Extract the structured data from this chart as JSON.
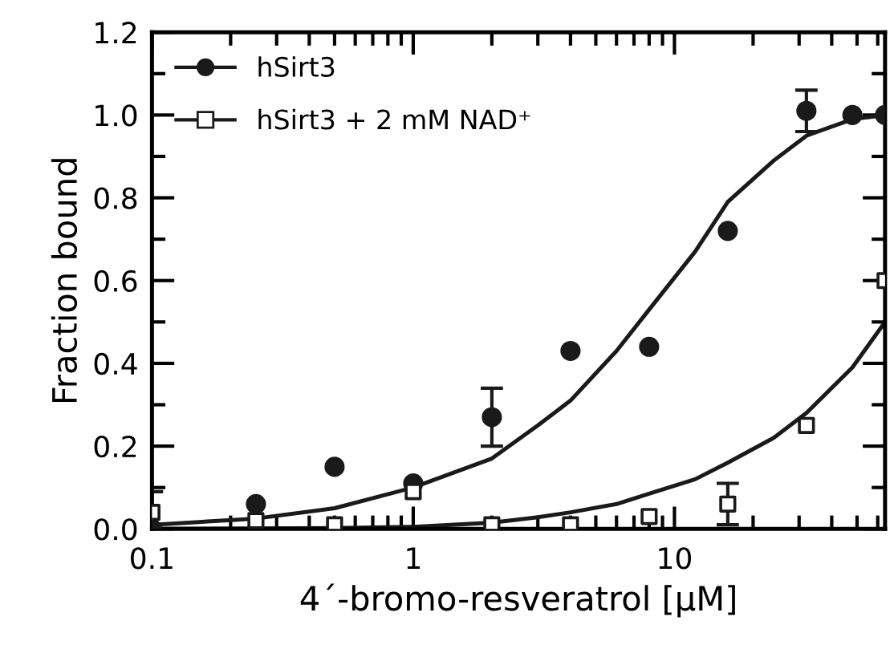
{
  "chart_data": {
    "type": "scatter",
    "xlabel": "4´-bromo-resveratrol [µM]",
    "ylabel": "Fraction bound",
    "log": "x",
    "xlim": [
      0.1,
      64
    ],
    "xticks": [
      0.1,
      1,
      10
    ],
    "ylim": [
      0,
      1.2
    ],
    "yticks": [
      {
        "value": 0,
        "label": "0.0"
      },
      {
        "value": 0.2,
        "label": "0.2"
      },
      {
        "value": 0.4,
        "label": "0.4"
      },
      {
        "value": 0.6,
        "label": "0.6"
      },
      {
        "value": 0.8,
        "label": "0.8"
      },
      {
        "value": 1.0,
        "label": "1.0"
      },
      {
        "value": 1.2,
        "label": "1.2"
      }
    ],
    "legend": "top left",
    "grid": false,
    "series": [
      {
        "name": "hSirt3",
        "marker": "circle",
        "color": "#1a1a1a",
        "x": [
          0.1,
          0.25,
          0.5,
          1,
          2,
          4,
          8,
          16,
          32,
          48,
          64
        ],
        "values": [
          0.0,
          0.06,
          0.15,
          0.11,
          0.27,
          0.43,
          0.44,
          0.72,
          1.01,
          1.0,
          1.0
        ],
        "errors": [
          null,
          null,
          null,
          null,
          0.07,
          null,
          null,
          null,
          0.05,
          null,
          null
        ]
      },
      {
        "name": "hSirt3 + 2 mM NAD⁺",
        "marker": "square",
        "color": "#1a1a1a",
        "x": [
          0.1,
          0.25,
          0.5,
          1,
          2,
          4,
          8,
          16,
          32,
          64
        ],
        "values": [
          0.04,
          0.02,
          0.01,
          0.09,
          0.01,
          0.01,
          0.03,
          0.06,
          0.25,
          0.6
        ],
        "errors": [
          0.05,
          null,
          null,
          null,
          null,
          null,
          null,
          0.05,
          null,
          null
        ]
      },
      {
        "type": "line",
        "color": "#1a1a1a",
        "x": [
          0.1,
          0.25,
          0.5,
          1,
          2,
          3,
          4,
          6,
          8,
          12,
          16,
          24,
          32,
          48,
          64
        ],
        "values": [
          0.01,
          0.025,
          0.05,
          0.1,
          0.17,
          0.25,
          0.31,
          0.43,
          0.53,
          0.67,
          0.79,
          0.89,
          0.95,
          0.99,
          1.0
        ]
      },
      {
        "type": "line",
        "color": "#1a1a1a",
        "x": [
          0.1,
          0.5,
          1,
          2,
          3,
          4,
          6,
          8,
          12,
          16,
          24,
          32,
          48,
          64
        ],
        "values": [
          0.0,
          0.002,
          0.005,
          0.015,
          0.028,
          0.04,
          0.06,
          0.085,
          0.12,
          0.16,
          0.22,
          0.28,
          0.39,
          0.5
        ]
      }
    ]
  }
}
